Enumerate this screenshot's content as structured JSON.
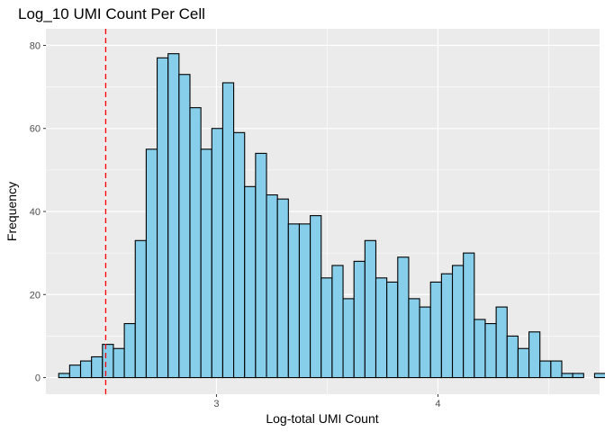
{
  "chart_data": {
    "type": "bar",
    "title": "Log_10 UMI Count Per Cell",
    "xlabel": "Log-total UMI Count",
    "ylabel": "Frequency",
    "xlim": [
      2.23,
      4.73
    ],
    "ylim": [
      -4,
      84
    ],
    "x_ticks": [
      3,
      4
    ],
    "x_tick_labels": [
      "3",
      "4"
    ],
    "y_ticks": [
      0,
      20,
      40,
      60,
      80
    ],
    "y_tick_labels": [
      "0",
      "20",
      "40",
      "60",
      "80"
    ],
    "bin_start": 2.2878,
    "bin_width": 0.04938,
    "values": [
      1,
      3,
      4,
      5,
      8,
      7,
      13,
      33,
      55,
      77,
      78,
      73,
      65,
      55,
      60,
      71,
      59,
      46,
      54,
      44,
      43,
      37,
      37,
      39,
      24,
      27,
      19,
      28,
      33,
      24,
      23,
      29,
      19,
      17,
      23,
      25,
      27,
      30,
      14,
      13,
      17,
      10,
      7,
      11,
      4,
      4,
      1,
      1,
      0,
      1
    ],
    "threshold_x": 2.5,
    "grid": true,
    "colors": {
      "bar_fill": "#87ceeb",
      "bar_stroke": "#000000",
      "panel_background": "#ebebeb",
      "grid": "#ffffff",
      "threshold_line": "#ff0000"
    }
  }
}
